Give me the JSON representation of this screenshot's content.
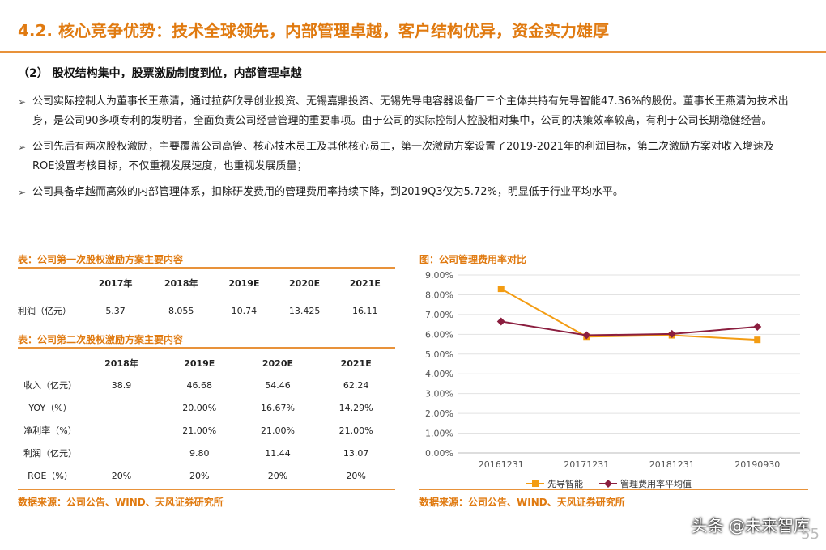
{
  "page": {
    "title": "4.2. 核心竞争优势：技术全球领先，内部管理卓越，客户结构优异，资金实力雄厚",
    "subtitle": "（2） 股权结构集中，股票激励制度到位，内部管理卓越",
    "bullets": [
      "公司实际控制人为董事长王燕清，通过拉萨欣导创业投资、无锡嘉鼎投资、无锡先导电容器设备厂三个主体共持有先导智能47.36%的股份。董事长王燕清为技术出身，是公司90多项专利的发明者，全面负责公司经营管理的重要事项。由于公司的实际控制人控股相对集中，公司的决策效率较高，有利于公司长期稳健经营。",
      "公司先后有两次股权激励，主要覆盖公司高管、核心技术员工及其他核心员工，第一次激励方案设置了2019-2021年的利润目标，第二次激励方案对收入增速及ROE设置考核目标，不仅重视发展速度，也重视发展质量；",
      "公司具备卓越而高效的内部管理体系，扣除研发费用的管理费用率持续下降，到2019Q3仅为5.72%，明显低于行业平均水平。"
    ],
    "bullet_marker": "➢",
    "page_number": "55",
    "watermark": "头条 @未来智库"
  },
  "table1": {
    "caption": "表：公司第一次股权激励方案主要内容",
    "headers": [
      "",
      "2017年",
      "2018年",
      "2019E",
      "2020E",
      "2021E"
    ],
    "rows": [
      [
        "利润（亿元）",
        "5.37",
        "8.055",
        "10.74",
        "13.425",
        "16.11"
      ]
    ]
  },
  "table2": {
    "caption": "表：公司第二次股权激励方案主要内容",
    "headers": [
      "",
      "2018年",
      "2019E",
      "2020E",
      "2021E"
    ],
    "rows": [
      [
        "收入（亿元）",
        "38.9",
        "46.68",
        "54.46",
        "62.24"
      ],
      [
        "YOY（%）",
        "",
        "20.00%",
        "16.67%",
        "14.29%"
      ],
      [
        "净利率（%）",
        "",
        "21.00%",
        "21.00%",
        "21.00%"
      ],
      [
        "利润（亿元）",
        "",
        "9.80",
        "11.44",
        "13.07"
      ],
      [
        "ROE（%）",
        "20%",
        "20%",
        "20%",
        "20%"
      ]
    ],
    "source": "数据来源：公司公告、WIND、天风证券研究所"
  },
  "chart_caption": "图：公司管理费用率对比",
  "chart_source": "数据来源：公司公告、WIND、天风证券研究所",
  "chart_data": {
    "type": "line",
    "categories": [
      "20161231",
      "20171231",
      "20181231",
      "20190930"
    ],
    "ylim": [
      0,
      0.09
    ],
    "yticks": [
      "0.00%",
      "1.00%",
      "2.00%",
      "3.00%",
      "4.00%",
      "5.00%",
      "6.00%",
      "7.00%",
      "8.00%",
      "9.00%"
    ],
    "grid": true,
    "legend": "bottom",
    "series": [
      {
        "name": "先导智能",
        "values": [
          0.083,
          0.0588,
          0.0595,
          0.0572
        ],
        "color": "#F39C12",
        "marker": "square"
      },
      {
        "name": "管理费用率平均值",
        "values": [
          0.0665,
          0.0595,
          0.0602,
          0.0638
        ],
        "color": "#8B1E3F",
        "marker": "diamond"
      }
    ]
  }
}
